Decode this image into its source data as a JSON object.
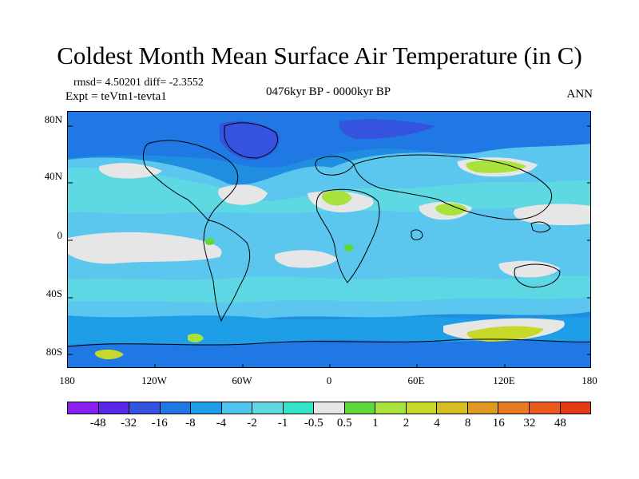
{
  "title": "Coldest Month Mean Surface Air Temperature (in C)",
  "stats": "rmsd= 4.50201 diff= -2.3552",
  "experiment": "Expt = teVtn1-tevta1",
  "period": "0476kyr BP - 0000kyr BP",
  "season": "ANN",
  "map": {
    "projection": "cylindrical equidistant",
    "lon_range": [
      -180,
      180
    ],
    "lat_range": [
      -90,
      90
    ],
    "background_color": "#1f8ee0",
    "ocean_dominant_color": "#5bc7ef",
    "lat_ticks": [
      "80N",
      "40N",
      "0",
      "40S",
      "80S"
    ],
    "lon_ticks": [
      "180",
      "120W",
      "60W",
      "0",
      "60E",
      "120E",
      "180"
    ]
  },
  "colorbar": {
    "colors": [
      "#8a1ff2",
      "#5a28e8",
      "#3454e0",
      "#1f78e4",
      "#1f9ee8",
      "#4ec6ef",
      "#5ed9e0",
      "#35e3c8",
      "#e6e6e6",
      "#5fd83a",
      "#a8e23a",
      "#c8d82a",
      "#d6be22",
      "#e09a22",
      "#e87a22",
      "#ea5a1e",
      "#e63a12"
    ],
    "labels": [
      "-48",
      "-32",
      "-16",
      "-8",
      "-4",
      "-2",
      "-1",
      "-0.5",
      "0.5",
      "1",
      "2",
      "4",
      "8",
      "16",
      "32",
      "48"
    ]
  }
}
